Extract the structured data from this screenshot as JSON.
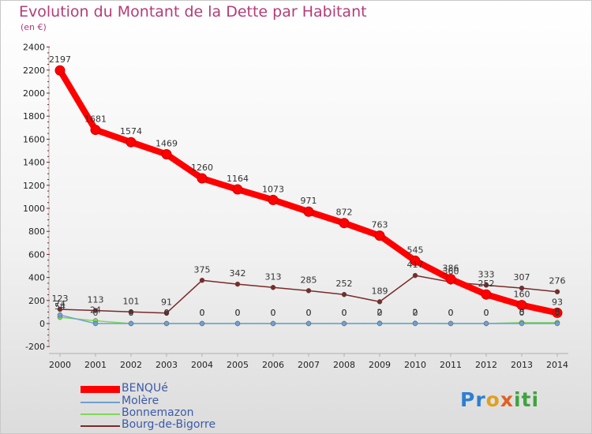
{
  "title": "Evolution du Montant de la Dette par Habitant",
  "subtitle": "(en €)",
  "logo_text": "Proxiti",
  "chart_data": {
    "type": "line",
    "x": [
      "2000",
      "2001",
      "2002",
      "2003",
      "2004",
      "2005",
      "2006",
      "2007",
      "2008",
      "2009",
      "2010",
      "2011",
      "2012",
      "2013",
      "2014"
    ],
    "ylim": [
      -200,
      2400
    ],
    "y_ticks": [
      -200,
      0,
      200,
      400,
      600,
      800,
      1000,
      1200,
      1400,
      1600,
      1800,
      2000,
      2200,
      2400
    ],
    "grid": false,
    "legend_position": "bottom-left",
    "series": [
      {
        "name": "BENQUé",
        "color": "#ff0000",
        "values": [
          2197,
          1681,
          1574,
          1469,
          1260,
          1164,
          1073,
          971,
          872,
          763,
          545,
          386,
          252,
          160,
          93
        ],
        "labels": [
          "2197",
          "1681",
          "1574",
          "1469",
          "1260",
          "1164",
          "1073",
          "971",
          "872",
          "763",
          "545",
          "386",
          "252",
          "160",
          "93"
        ]
      },
      {
        "name": "Molère",
        "color": "#6fa0d0",
        "values": [
          74,
          0,
          0,
          0,
          0,
          0,
          0,
          0,
          0,
          0,
          0,
          0,
          0,
          0,
          0
        ],
        "labels": [
          "74",
          "0",
          "0",
          "0",
          "0",
          "0",
          "0",
          "0",
          "0",
          "0",
          "0",
          "0",
          "0",
          "0",
          "0"
        ]
      },
      {
        "name": "Bonnemazon",
        "color": "#7ed957",
        "values": [
          54,
          24,
          0,
          0,
          0,
          0,
          0,
          0,
          0,
          2,
          2,
          0,
          0,
          8,
          8
        ],
        "labels": [
          "54",
          "24",
          "0",
          "0",
          "0",
          "0",
          "0",
          "0",
          "0",
          "2",
          "2",
          "0",
          "0",
          "8",
          "8"
        ]
      },
      {
        "name": "Bourg-de-Bigorre",
        "color": "#7a2a2a",
        "values": [
          123,
          113,
          101,
          91,
          375,
          342,
          313,
          285,
          252,
          189,
          417,
          360,
          333,
          307,
          276
        ],
        "labels": [
          "123",
          "113",
          "101",
          "91",
          "375",
          "342",
          "313",
          "285",
          "252",
          "189",
          "417",
          "360",
          "333",
          "307",
          "276"
        ]
      }
    ]
  }
}
